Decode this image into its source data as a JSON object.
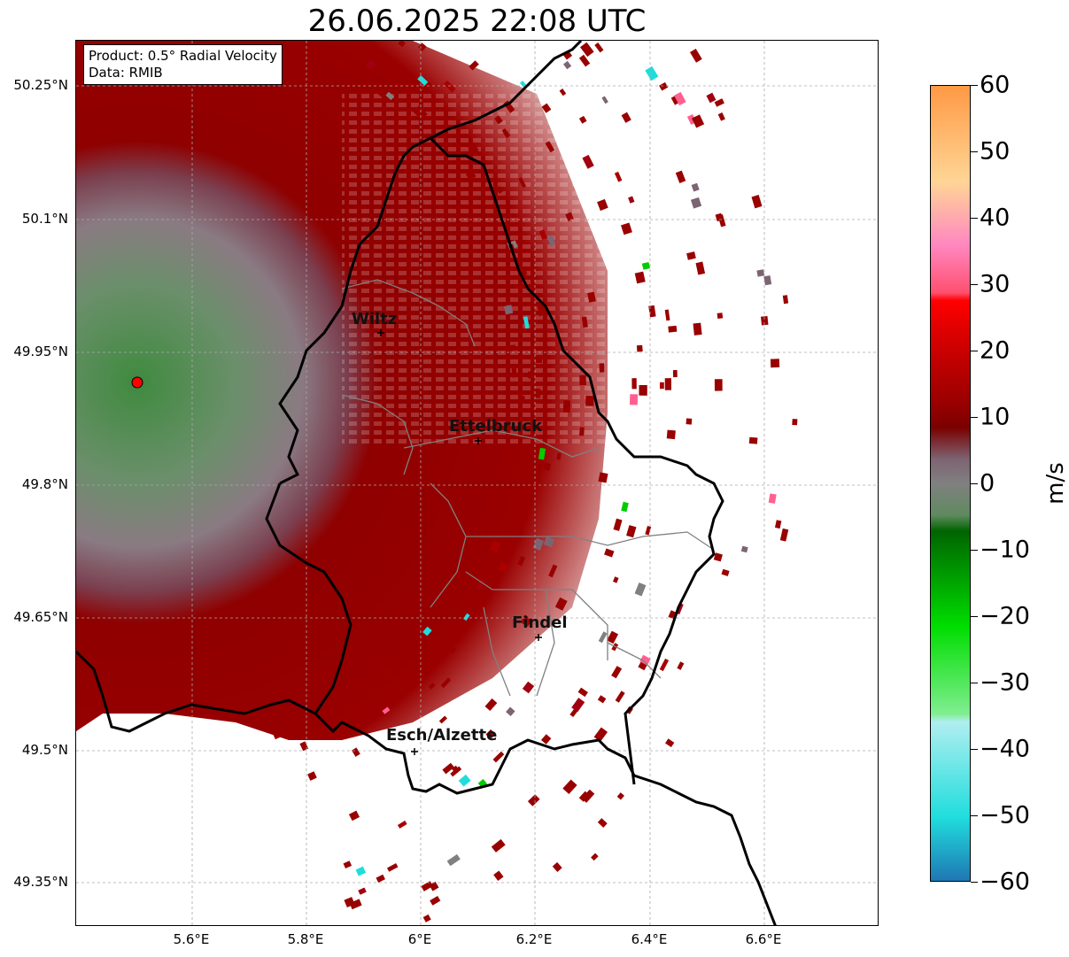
{
  "title": "26.06.2025 22:08 UTC",
  "info_box": {
    "product": "Product: 0.5° Radial Velocity",
    "data": "Data: RMIB"
  },
  "map": {
    "lat_ticks": [
      "50.25°N",
      "50.1°N",
      "49.95°N",
      "49.8°N",
      "49.65°N",
      "49.5°N",
      "49.35°N"
    ],
    "lon_ticks": [
      "5.6°E",
      "5.8°E",
      "6°E",
      "6.2°E",
      "6.4°E",
      "6.6°E"
    ],
    "cities": [
      {
        "name": "Wiltz"
      },
      {
        "name": "Ettelbruck"
      },
      {
        "name": "Findel"
      },
      {
        "name": "Esch/Alzette"
      }
    ],
    "radar_marker": "red-dot"
  },
  "colorbar": {
    "unit": "m/s",
    "ticks": [
      "60",
      "50",
      "40",
      "30",
      "20",
      "10",
      "0",
      "−10",
      "−20",
      "−30",
      "−40",
      "−50",
      "−60"
    ],
    "range": [
      -60,
      60
    ],
    "colors": {
      "pos_high": "#ff9944",
      "pos_orange": "#ffd595",
      "pos_pink": "#ff88c0",
      "pos_red": "#ff0000",
      "pos_darkred": "#990000",
      "near_zero_mauve": "#7d6472",
      "neutral_grey": "#808080",
      "neg_green_dark": "#006400",
      "neg_green": "#00dd00",
      "neg_lightgreen": "#80ee90",
      "neg_cyan": "#b0eef0",
      "neg_teal": "#20dddd",
      "neg_blue": "#1f77b4"
    }
  }
}
